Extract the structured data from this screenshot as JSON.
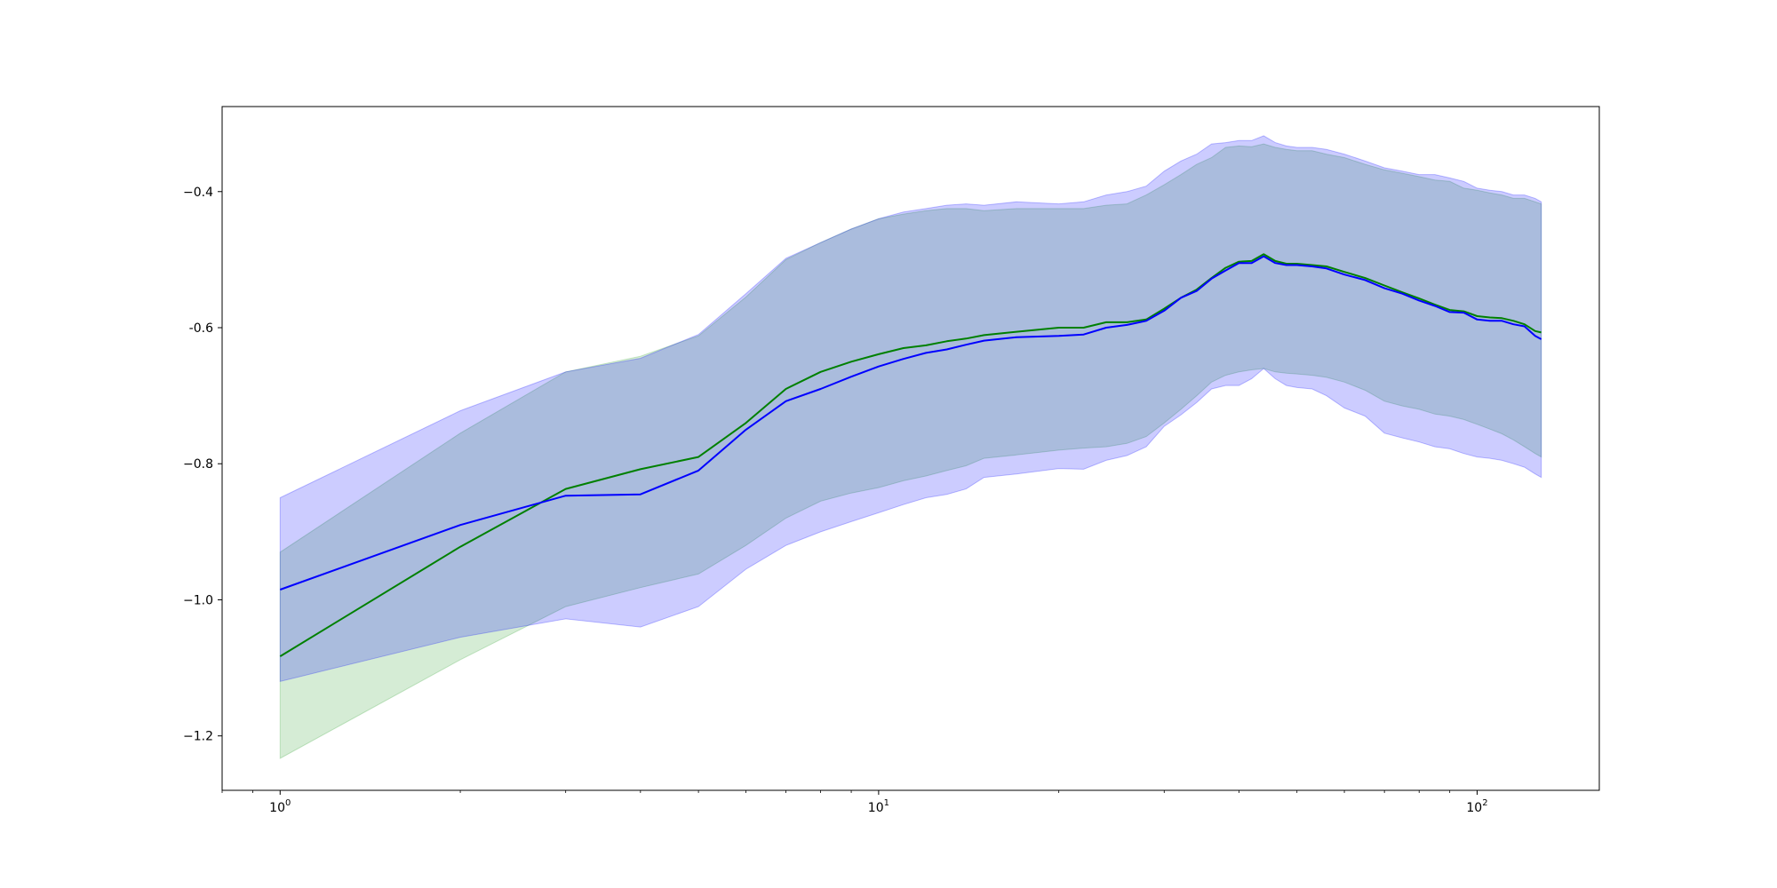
{
  "chart_data": {
    "type": "line",
    "title": "",
    "xlabel": "",
    "ylabel": "",
    "xscale": "log",
    "xlim": [
      0.8,
      160
    ],
    "ylim": [
      -1.28,
      -0.275
    ],
    "grid": false,
    "xticks": [
      {
        "value": 1,
        "base": "10",
        "exp": "0"
      },
      {
        "value": 10,
        "base": "10",
        "exp": "1"
      },
      {
        "value": 100,
        "base": "10",
        "exp": "2"
      }
    ],
    "yticks": [
      {
        "value": -0.4,
        "label": "−0.4"
      },
      {
        "value": -0.6,
        "label": "-0.6"
      },
      {
        "value": -0.8,
        "label": "−0.8"
      },
      {
        "value": -1.0,
        "label": "−1.0"
      },
      {
        "value": -1.2,
        "label": "−1.2"
      }
    ],
    "series": [
      {
        "color": "#008000",
        "band_color": "#2ca02c",
        "x": [
          1,
          2,
          3,
          4,
          5,
          6,
          7,
          8,
          9,
          10,
          11,
          12,
          13,
          14,
          15,
          17,
          20,
          22,
          24,
          26,
          28,
          30,
          32,
          34,
          36,
          38,
          40,
          42,
          44,
          46,
          48,
          50,
          53,
          56,
          60,
          65,
          70,
          75,
          80,
          85,
          90,
          95,
          100,
          105,
          110,
          115,
          120,
          125,
          128
        ],
        "y": [
          -1.083,
          -0.922,
          -0.837,
          -0.808,
          -0.79,
          -0.74,
          -0.69,
          -0.665,
          -0.65,
          -0.639,
          -0.63,
          -0.626,
          -0.62,
          -0.616,
          -0.611,
          -0.606,
          -0.6,
          -0.6,
          -0.592,
          -0.592,
          -0.588,
          -0.572,
          -0.556,
          -0.544,
          -0.527,
          -0.512,
          -0.503,
          -0.502,
          -0.492,
          -0.502,
          -0.506,
          -0.506,
          -0.508,
          -0.51,
          -0.518,
          -0.527,
          -0.538,
          -0.548,
          -0.557,
          -0.566,
          -0.574,
          -0.576,
          -0.583,
          -0.585,
          -0.586,
          -0.59,
          -0.595,
          -0.605,
          -0.607
        ],
        "lower": [
          -1.233,
          -1.088,
          -1.01,
          -0.982,
          -0.962,
          -0.92,
          -0.88,
          -0.855,
          -0.843,
          -0.835,
          -0.825,
          -0.818,
          -0.81,
          -0.803,
          -0.792,
          -0.787,
          -0.78,
          -0.777,
          -0.775,
          -0.77,
          -0.76,
          -0.74,
          -0.72,
          -0.7,
          -0.68,
          -0.67,
          -0.665,
          -0.662,
          -0.66,
          -0.665,
          -0.667,
          -0.668,
          -0.67,
          -0.673,
          -0.68,
          -0.692,
          -0.708,
          -0.715,
          -0.72,
          -0.727,
          -0.73,
          -0.735,
          -0.742,
          -0.749,
          -0.756,
          -0.765,
          -0.775,
          -0.785,
          -0.79
        ],
        "upper": [
          -0.93,
          -0.755,
          -0.665,
          -0.642,
          -0.612,
          -0.555,
          -0.5,
          -0.475,
          -0.455,
          -0.44,
          -0.433,
          -0.428,
          -0.425,
          -0.425,
          -0.428,
          -0.425,
          -0.425,
          -0.425,
          -0.42,
          -0.418,
          -0.405,
          -0.39,
          -0.375,
          -0.36,
          -0.35,
          -0.335,
          -0.333,
          -0.334,
          -0.33,
          -0.335,
          -0.338,
          -0.34,
          -0.34,
          -0.345,
          -0.35,
          -0.36,
          -0.368,
          -0.373,
          -0.378,
          -0.383,
          -0.385,
          -0.395,
          -0.398,
          -0.402,
          -0.405,
          -0.41,
          -0.41,
          -0.415,
          -0.418
        ]
      },
      {
        "color": "#0000ff",
        "band_color": "#0000ff",
        "x": [
          1,
          2,
          3,
          4,
          5,
          6,
          7,
          8,
          9,
          10,
          11,
          12,
          13,
          14,
          15,
          17,
          20,
          22,
          24,
          26,
          28,
          30,
          32,
          34,
          36,
          38,
          40,
          42,
          44,
          46,
          48,
          50,
          53,
          56,
          60,
          65,
          70,
          75,
          80,
          85,
          90,
          95,
          100,
          105,
          110,
          115,
          120,
          125,
          128
        ],
        "y": [
          -0.985,
          -0.89,
          -0.847,
          -0.845,
          -0.81,
          -0.75,
          -0.708,
          -0.69,
          -0.672,
          -0.657,
          -0.646,
          -0.637,
          -0.632,
          -0.625,
          -0.619,
          -0.614,
          -0.612,
          -0.61,
          -0.6,
          -0.596,
          -0.59,
          -0.575,
          -0.556,
          -0.546,
          -0.528,
          -0.516,
          -0.505,
          -0.505,
          -0.495,
          -0.505,
          -0.508,
          -0.508,
          -0.51,
          -0.513,
          -0.522,
          -0.53,
          -0.542,
          -0.55,
          -0.56,
          -0.568,
          -0.577,
          -0.578,
          -0.588,
          -0.59,
          -0.59,
          -0.595,
          -0.598,
          -0.612,
          -0.617
        ],
        "lower": [
          -1.12,
          -1.055,
          -1.028,
          -1.04,
          -1.01,
          -0.955,
          -0.92,
          -0.9,
          -0.885,
          -0.872,
          -0.86,
          -0.85,
          -0.845,
          -0.837,
          -0.82,
          -0.815,
          -0.807,
          -0.808,
          -0.795,
          -0.788,
          -0.775,
          -0.745,
          -0.728,
          -0.71,
          -0.69,
          -0.685,
          -0.685,
          -0.675,
          -0.66,
          -0.675,
          -0.685,
          -0.688,
          -0.69,
          -0.7,
          -0.718,
          -0.73,
          -0.755,
          -0.762,
          -0.768,
          -0.775,
          -0.778,
          -0.785,
          -0.79,
          -0.792,
          -0.795,
          -0.8,
          -0.805,
          -0.815,
          -0.82
        ],
        "upper": [
          -0.85,
          -0.722,
          -0.665,
          -0.645,
          -0.61,
          -0.55,
          -0.498,
          -0.475,
          -0.455,
          -0.44,
          -0.43,
          -0.425,
          -0.42,
          -0.418,
          -0.42,
          -0.415,
          -0.418,
          -0.415,
          -0.405,
          -0.4,
          -0.392,
          -0.37,
          -0.355,
          -0.345,
          -0.33,
          -0.328,
          -0.325,
          -0.325,
          -0.318,
          -0.328,
          -0.333,
          -0.335,
          -0.335,
          -0.338,
          -0.345,
          -0.355,
          -0.365,
          -0.37,
          -0.375,
          -0.375,
          -0.38,
          -0.385,
          -0.395,
          -0.398,
          -0.4,
          -0.405,
          -0.405,
          -0.41,
          -0.415
        ]
      }
    ]
  }
}
